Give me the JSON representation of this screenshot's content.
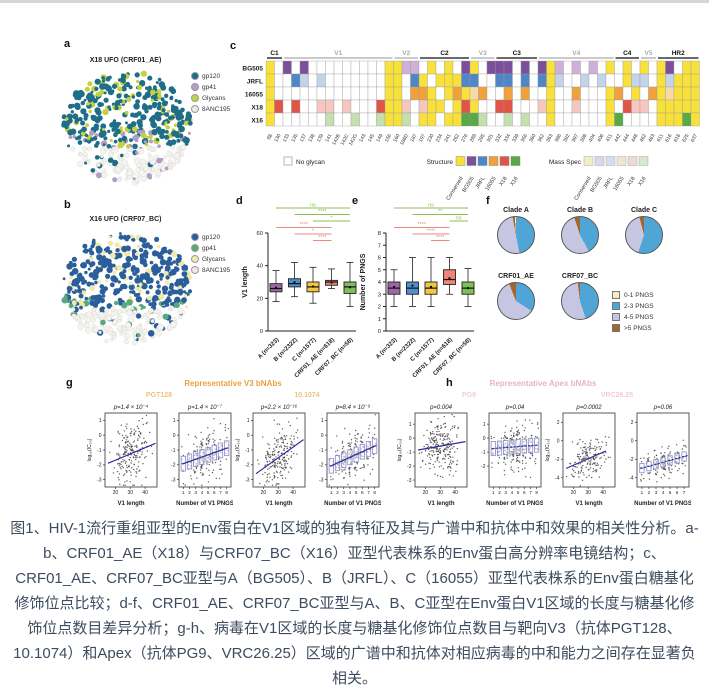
{
  "caption": "图1、HIV-1流行重组亚型的Env蛋白在V1区域的独有特征及其与广谱中和抗体中和效果的相关性分析。a-b、CRF01_AE（X18）与CRF07_BC（X16）亚型代表株系的Env蛋白高分辨率电镜结构；c、CRF01_AE、CRF07_BC亚型与A（BG505）、B（JRFL）、C（16055）亚型代表株系的Env蛋白糖基化修饰位点比较；d-f、CRF01_AE、CRF07_BC亚型与A、B、C亚型在Env蛋白V1区域的长度与糖基化修饰位点数目差异分析；g-h、病毒在V1区域的长度与糖基化修饰位点数目与靶向V3（抗体PGT128、10.1074）和Apex（抗体PG9、VRC26.25）区域的广谱中和抗体对相应病毒的中和能力之间存在显著负相关。",
  "panel_a": {
    "label": "a",
    "title": "X18 UFO (CRF01_AE)",
    "legend": [
      {
        "label": "gp120",
        "color": "#1e6e87"
      },
      {
        "label": "gp41",
        "color": "#b39cc7"
      },
      {
        "label": "Glycans",
        "color": "#c3d13f"
      },
      {
        "label": "8ANC195",
        "color": "#eceae4"
      }
    ]
  },
  "panel_b": {
    "label": "b",
    "title": "X16 UFO (CRF07_BC)",
    "legend": [
      {
        "label": "gp120",
        "color": "#2b5f9b"
      },
      {
        "label": "gp41",
        "color": "#58a97c"
      },
      {
        "label": "Glycans",
        "color": "#efe9ad"
      },
      {
        "label": "8ANC195",
        "color": "#eceae4"
      }
    ]
  },
  "panel_c": {
    "label": "c"
  },
  "panel_d": {
    "label": "d"
  },
  "panel_e": {
    "label": "e"
  },
  "panel_f": {
    "label": "f"
  },
  "panel_g": {
    "label": "g",
    "title": "Representative V3 bNAbs",
    "title_color": "#e8a23b",
    "sub1": "PGT128",
    "sub2": "10.1074",
    "sub_color": "#f0c27e"
  },
  "panel_h": {
    "label": "h",
    "title": "Representative Apex bNAbs",
    "title_color": "#e9b3c4",
    "sub1": "PG9",
    "sub2": "VRC26.25",
    "sub_color": "#f2ccd8"
  },
  "chart_data": [
    {
      "id": "c",
      "type": "heatmap",
      "rows": [
        "BG505",
        "JRFL",
        "16055",
        "X18",
        "X16"
      ],
      "positions": [
        "88",
        "130",
        "133",
        "135",
        "137",
        "138",
        "139",
        "141",
        "142B",
        "142C",
        "142G",
        "143",
        "145",
        "149",
        "156",
        "160",
        "186D",
        "187",
        "197",
        "230",
        "234",
        "241",
        "262",
        "276",
        "289",
        "295",
        "301",
        "332",
        "334",
        "339",
        "356",
        "360",
        "362",
        "363",
        "386",
        "392",
        "397",
        "398",
        "404",
        "406",
        "411",
        "442",
        "444",
        "448",
        "462",
        "463",
        "611",
        "616",
        "618",
        "625",
        "637"
      ],
      "groups": [
        {
          "label": "C1",
          "start": 0,
          "end": 1,
          "dark": true
        },
        {
          "label": "V1",
          "start": 2,
          "end": 14,
          "dark": false
        },
        {
          "label": "V2",
          "start": 15,
          "end": 17,
          "dark": false
        },
        {
          "label": "C2",
          "start": 18,
          "end": 23,
          "dark": true
        },
        {
          "label": "V3",
          "start": 24,
          "end": 26,
          "dark": false
        },
        {
          "label": "C3",
          "start": 27,
          "end": 31,
          "dark": true
        },
        {
          "label": "V4",
          "start": 32,
          "end": 40,
          "dark": false
        },
        {
          "label": "C4",
          "start": 41,
          "end": 43,
          "dark": true
        },
        {
          "label": "V5",
          "start": 44,
          "end": 45,
          "dark": false
        },
        {
          "label": "HR2",
          "start": 46,
          "end": 50,
          "dark": true
        }
      ],
      "matrix": [
        "YWPWPWWWWWWWWWYYppWYWYWPYWPPPWPWPYpWpWpWYWYWYWYPWYY",
        "YWWBbWbWWWWWWWYYWBYWYYYBBWWBBWBWBYbWWbWbWWYbbWYbYYY",
        "YWWWWWWWWWWWWWYYWOOYWYOYoOWWOWOWWYWWOWWWYOWYWOYoYYY",
        "YRWRWWrrWrWWWRYYrWrYYWYRYWWRRWWWrYWWrWWWYWRrrWYYYYY",
        "YWWWWWWgWWgWWgYYgWYYWYYGGgWWgWgWWYWWWWWWYGWWWWYYYGY"
      ],
      "palette": {
        "Y": "#f9e13c",
        "W": "#ffffff",
        "P": "#7b4f9b",
        "p": "#cfb0d8",
        "B": "#4f86c6",
        "b": "#c3d3ea",
        "O": "#f0a13c",
        "o": "#f8d9a8",
        "R": "#e05548",
        "r": "#f6c7c1",
        "G": "#57aa47",
        "g": "#c2e0b0"
      },
      "legend": {
        "no_glycan": "No glycan",
        "structure_label": "Structure",
        "mass_spec_label": "Mass Spec",
        "names": [
          "Conserved",
          "BG505",
          "JRFL",
          "16055",
          "X18",
          "X16"
        ],
        "structure_colors": [
          "#f9e13c",
          "#7b4f9b",
          "#4f86c6",
          "#f0a13c",
          "#e05548",
          "#57aa47"
        ],
        "mass_spec_colors": [
          "#f1eec5",
          "#ded5e9",
          "#d6deee",
          "#eee6d0",
          "#ecdad6",
          "#d8e8d0"
        ]
      }
    },
    {
      "id": "d",
      "type": "box",
      "ylabel": "V1 length",
      "ylim": [
        0,
        60
      ],
      "yticks": [
        0,
        20,
        40,
        60
      ],
      "categories": [
        "A (n=323)",
        "B (n=2322)",
        "C (n=1577)",
        "CRF01_AE (n=618)",
        "CRF07_BC (n=58)"
      ],
      "colors": [
        "#a265aa",
        "#4f8fce",
        "#f3c83e",
        "#ef8576",
        "#7fbf5a"
      ],
      "boxes": [
        [
          18,
          24,
          26,
          26.5,
          29,
          37
        ],
        [
          21,
          27,
          29,
          29.8,
          32,
          42
        ],
        [
          17,
          24,
          27,
          27.2,
          30,
          39
        ],
        [
          26,
          28,
          30,
          29.7,
          31,
          38
        ],
        [
          15,
          23,
          27,
          26.8,
          30,
          42
        ]
      ],
      "sig": [
        {
          "a": 0,
          "b": 4,
          "label": "ns",
          "color": "#8fbf4d"
        },
        {
          "a": 1,
          "b": 4,
          "label": "****",
          "color": "#8fbf4d"
        },
        {
          "a": 2,
          "b": 4,
          "label": "*",
          "color": "#8fbf4d"
        },
        {
          "a": 0,
          "b": 3,
          "label": "****",
          "color": "#e98b7e"
        },
        {
          "a": 1,
          "b": 3,
          "label": "*",
          "color": "#e98b7e"
        },
        {
          "a": 2,
          "b": 3,
          "label": "****",
          "color": "#e98b7e"
        }
      ]
    },
    {
      "id": "e",
      "type": "box",
      "ylabel": "Number of PNGS",
      "ylim": [
        0,
        8
      ],
      "yticks": [
        0,
        1,
        2,
        3,
        4,
        5,
        6,
        7,
        8
      ],
      "categories": [
        "A (n=323)",
        "B (n=2322)",
        "C (n=1577)",
        "CRF01_AE (n=618)",
        "CRF07_BC (n=58)"
      ],
      "colors": [
        "#a265aa",
        "#4f8fce",
        "#f3c83e",
        "#ef8576",
        "#7fbf5a"
      ],
      "boxes": [
        [
          2,
          3,
          3.5,
          3.6,
          4,
          5
        ],
        [
          2,
          3,
          3.5,
          3.7,
          4,
          6
        ],
        [
          2,
          3,
          3.5,
          3.6,
          4,
          6
        ],
        [
          3,
          3.8,
          4.2,
          4.3,
          5,
          6
        ],
        [
          2,
          3,
          3.5,
          3.5,
          4,
          5.1
        ]
      ],
      "sig": [
        {
          "a": 0,
          "b": 4,
          "label": "ns",
          "color": "#8fbf4d"
        },
        {
          "a": 1,
          "b": 4,
          "label": "**",
          "color": "#8fbf4d"
        },
        {
          "a": 3,
          "b": 4,
          "label": "ns",
          "color": "#8fbf4d"
        },
        {
          "a": 0,
          "b": 3,
          "label": "****",
          "color": "#e98b7e"
        },
        {
          "a": 1,
          "b": 3,
          "label": "****",
          "color": "#e98b7e"
        },
        {
          "a": 2,
          "b": 3,
          "label": "****",
          "color": "#e98b7e"
        }
      ]
    },
    {
      "id": "f",
      "type": "pie",
      "legend": [
        "0-1 PNGS",
        "2-3 PNGS",
        "4-5 PNGS",
        ">5 PNGS"
      ],
      "slice_colors": [
        "#f7efc1",
        "#4fa5d5",
        "#c6c6e3",
        "#a2672c"
      ],
      "pies": [
        {
          "title": "Clade A",
          "values": [
            1,
            47,
            50,
            2
          ]
        },
        {
          "title": "Clade B",
          "values": [
            0,
            42,
            53,
            5
          ]
        },
        {
          "title": "Clade C",
          "values": [
            0,
            55,
            41,
            4
          ]
        },
        {
          "title": "CRF01_AE",
          "values": [
            0,
            34,
            60,
            6
          ]
        },
        {
          "title": "CRF07_BC",
          "values": [
            0,
            45,
            53,
            2
          ]
        }
      ]
    },
    {
      "id": "g1",
      "type": "scatter",
      "p": "p=1.4 × 10⁻⁴",
      "xlabel": "V1 length",
      "xticks": [
        20,
        30,
        40
      ],
      "xlim": [
        13,
        48
      ],
      "ylim": [
        -3.5,
        1.5
      ],
      "yticks": [
        1,
        0,
        -1,
        -2,
        -3
      ],
      "ylabel": "log₁₀(IC₅₀)",
      "trend": [
        15,
        -1.9,
        47,
        -0.55
      ],
      "seed": 7,
      "n": 200
    },
    {
      "id": "g2",
      "type": "pngs",
      "p": "p=1.4 × 10⁻⁷",
      "xlabel": "Number of V1 PNGS",
      "xticks": [
        1,
        2,
        3,
        4,
        5,
        6,
        7,
        8
      ],
      "ylim": [
        -3.5,
        1.5
      ],
      "yticks": [
        1,
        0,
        -1,
        -2,
        -3
      ],
      "trend": [
        0.8,
        -1.95,
        8.2,
        -0.85
      ],
      "seed": 8,
      "n": 190
    },
    {
      "id": "g3",
      "type": "scatter",
      "p": "p=2.2 × 10⁻¹⁶",
      "xlabel": "V1 length",
      "xticks": [
        20,
        30,
        40
      ],
      "xlim": [
        13,
        48
      ],
      "ylim": [
        -3.5,
        1.5
      ],
      "yticks": [
        1,
        0,
        -1,
        -2,
        -3
      ],
      "ylabel": "log₁₀(IC₅₀)",
      "trend": [
        15,
        -2.6,
        47,
        -0.3
      ],
      "seed": 9,
      "n": 200
    },
    {
      "id": "g4",
      "type": "pngs",
      "p": "p=8.4 × 10⁻⁹",
      "xlabel": "Number of V1 PNGS",
      "xticks": [
        1,
        2,
        3,
        4,
        5,
        6,
        7,
        8
      ],
      "ylim": [
        -3.5,
        1.5
      ],
      "yticks": [
        1,
        0,
        -1,
        -2,
        -3
      ],
      "trend": [
        0.8,
        -2.1,
        8.2,
        -0.7
      ],
      "seed": 10,
      "n": 190
    },
    {
      "id": "h1",
      "type": "scatter",
      "p": "p=0.004",
      "xlabel": "V1 length",
      "xticks": [
        20,
        30,
        40
      ],
      "xlim": [
        13,
        48
      ],
      "ylim": [
        -3.5,
        1.8
      ],
      "yticks": [
        1,
        0,
        -1,
        -2,
        -3
      ],
      "ylabel": "log₁₀(IC₅₀)",
      "trend": [
        15,
        -0.85,
        47,
        -0.25
      ],
      "seed": 11,
      "n": 230
    },
    {
      "id": "h2",
      "type": "pngs",
      "p": "p=0.04",
      "xlabel": "Number of V1 PNGS",
      "xticks": [
        1,
        2,
        3,
        4,
        5,
        6,
        7,
        8
      ],
      "ylim": [
        -3.5,
        1.8
      ],
      "yticks": [
        1,
        0,
        -1,
        -2
      ],
      "trend": [
        0.8,
        -0.75,
        8.2,
        -0.5
      ],
      "dashed": true,
      "seed": 12,
      "n": 220
    },
    {
      "id": "h3",
      "type": "scatter",
      "p": "p=0.0002",
      "xlabel": "V1 length",
      "xticks": [
        20,
        30,
        40
      ],
      "xlim": [
        13,
        48
      ],
      "ylim": [
        -5,
        3
      ],
      "yticks": [
        2,
        0,
        -2,
        -4
      ],
      "ylabel": "log₁₀(IC₅₀)",
      "trend": [
        15,
        -3,
        42,
        -1.1
      ],
      "seed": 13,
      "n": 160
    },
    {
      "id": "h4",
      "type": "pngs",
      "p": "p=0.06",
      "xlabel": "Number of V1 PNGS",
      "xticks": [
        1,
        2,
        3,
        4,
        5,
        6,
        7
      ],
      "ylim": [
        -5,
        3
      ],
      "yticks": [
        2,
        0,
        -2,
        -4
      ],
      "trend": [
        0.8,
        -3,
        7.5,
        -1.6
      ],
      "dashed": true,
      "seed": 14,
      "n": 150
    }
  ]
}
